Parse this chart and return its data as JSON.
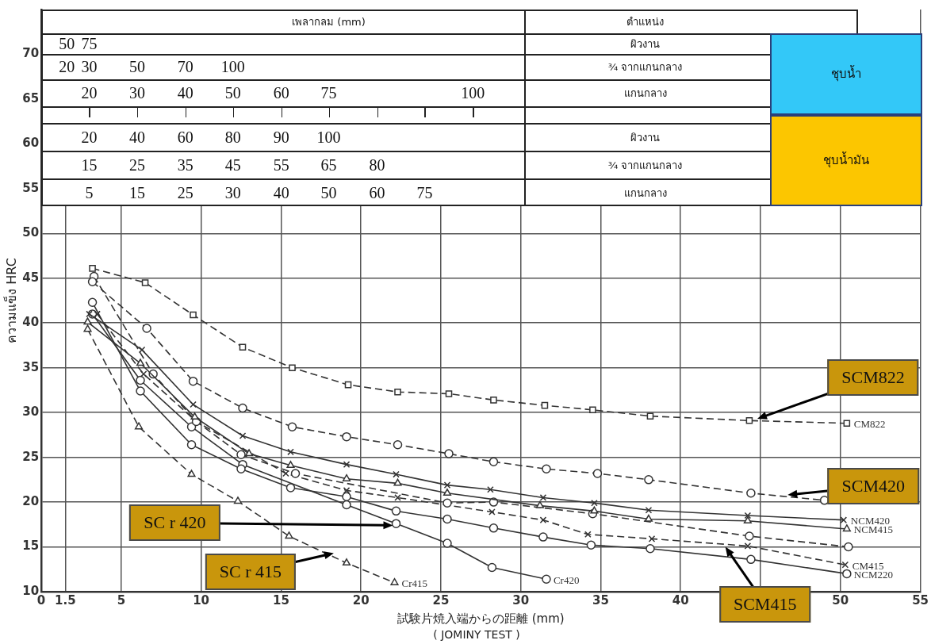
{
  "chart_data": {
    "type": "line",
    "xlabel": "試験片焼入端からの距離 (mm)",
    "ylabel": "ความแข็ง HRC",
    "xlim": [
      0,
      55
    ],
    "ylim": [
      10,
      75
    ],
    "xticks": [
      0,
      1.5,
      5,
      10,
      15,
      20,
      25,
      30,
      35,
      40,
      {
        "value": 45,
        "label": null
      },
      50,
      55
    ],
    "yticks": [
      10,
      15,
      20,
      25,
      30,
      35,
      40,
      45,
      50,
      55,
      60,
      65,
      70
    ],
    "grid": true,
    "series": [
      {
        "name": "CM822",
        "color": "#333333",
        "marker": "square",
        "line_style": "dashed",
        "x": [
          3.2,
          6.5,
          9.5,
          12.6,
          15.7,
          19.2,
          22.3,
          25.5,
          28.3,
          31.5,
          34.5,
          38.1,
          44.3,
          50.4
        ],
        "values": [
          46.1,
          44.5,
          40.9,
          37.3,
          35.0,
          33.1,
          32.3,
          32.1,
          31.4,
          30.8,
          30.3,
          29.6,
          29.1,
          28.8
        ]
      },
      {
        "color": "#333333",
        "marker": "circle",
        "line_style": "dashed",
        "x": [
          3.2,
          6.6,
          9.5,
          12.6,
          15.7,
          19.1,
          22.3,
          25.5,
          28.3,
          31.6,
          34.8,
          38.0,
          44.4,
          49.0
        ],
        "values": [
          44.6,
          39.4,
          33.5,
          30.5,
          28.4,
          27.3,
          26.4,
          25.4,
          24.5,
          23.7,
          23.2,
          22.5,
          21.0,
          20.2
        ]
      },
      {
        "name": "NCM420",
        "color": "#333333",
        "marker": "cross",
        "line_style": "solid",
        "x": [
          3.0,
          6.3,
          9.5,
          12.6,
          15.6,
          19.1,
          22.2,
          25.4,
          28.1,
          31.4,
          34.6,
          38.0,
          44.2,
          50.2
        ],
        "values": [
          41.0,
          37.0,
          30.9,
          27.4,
          25.6,
          24.2,
          23.1,
          21.9,
          21.4,
          20.5,
          19.9,
          19.1,
          18.5,
          18.0
        ]
      },
      {
        "name": "NCM415",
        "color": "#333333",
        "marker": "triangle",
        "line_style": "solid",
        "x": [
          2.9,
          6.2,
          9.6,
          13.0,
          15.6,
          19.1,
          22.3,
          25.4,
          31.2,
          34.6,
          38.0,
          44.2,
          50.4
        ],
        "values": [
          40.1,
          35.5,
          29.5,
          25.4,
          24.1,
          22.6,
          22.1,
          21.0,
          19.6,
          19.0,
          18.1,
          17.9,
          17.0
        ]
      },
      {
        "color": "#333333",
        "marker": "circle",
        "line_style": "dashed",
        "x": [
          3.3,
          7.0,
          9.7,
          12.5,
          15.9,
          25.4,
          28.3,
          34.5,
          44.3,
          50.5
        ],
        "values": [
          45.2,
          34.3,
          29.0,
          25.3,
          23.2,
          19.9,
          20.0,
          18.7,
          16.2,
          15.0
        ]
      },
      {
        "name": "CM415",
        "color": "#333333",
        "marker": "cross",
        "line_style": "dashed",
        "x": [
          3.5,
          6.4,
          9.7,
          15.3,
          19.1,
          22.3,
          28.2,
          31.4,
          34.2,
          38.2,
          44.2,
          50.3
        ],
        "values": [
          41.0,
          34.3,
          29.0,
          23.2,
          21.3,
          20.5,
          18.9,
          18.0,
          16.4,
          15.9,
          15.1,
          13.0
        ]
      },
      {
        "name": "NCM220",
        "color": "#333333",
        "marker": "circle",
        "line_style": "solid",
        "x": [
          3.2,
          6.2,
          9.4,
          12.5,
          15.6,
          19.1,
          22.2,
          25.4,
          28.3,
          31.4,
          34.4,
          38.1,
          44.4,
          50.4
        ],
        "values": [
          42.3,
          32.4,
          26.4,
          23.7,
          21.6,
          20.6,
          19.0,
          18.1,
          17.1,
          16.1,
          15.2,
          14.8,
          13.6,
          12.0
        ]
      },
      {
        "name": "Cr420",
        "color": "#333333",
        "marker": "circle",
        "line_style": "solid",
        "x": [
          3.2,
          6.2,
          9.4,
          12.6,
          15.6,
          19.1,
          22.2,
          25.4,
          28.2,
          31.6
        ],
        "values": [
          41.0,
          33.6,
          28.4,
          24.2,
          null,
          19.7,
          17.6,
          15.4,
          12.7,
          11.4
        ]
      },
      {
        "name": "Cr415",
        "color": "#333333",
        "marker": "triangle",
        "line_style": "dashed",
        "x": [
          2.9,
          6.1,
          9.4,
          12.3,
          15.5,
          19.1,
          22.1
        ],
        "values": [
          39.3,
          28.4,
          23.1,
          20.1,
          16.2,
          13.2,
          11.0
        ]
      }
    ],
    "annotations": [
      "ชุบน้ำ",
      "ชุบน้ำมัน",
      "( JOMINY TEST )",
      "เพลากลม (mm)",
      "ตำแหน่ง",
      "50",
      "75",
      "ผิวงาน",
      "20",
      "30",
      "50",
      "70",
      "100",
      "¾ จากแกนกลาง",
      "20",
      "30",
      "40",
      "50",
      "60",
      "75",
      "100",
      "แกนกลาง",
      "20",
      "40",
      "60",
      "80",
      "90",
      "100",
      "ผิวงาน",
      "15",
      "25",
      "35",
      "45",
      "55",
      "65",
      "80",
      "¾ จากแกนกลาง",
      "5",
      "15",
      "25",
      "30",
      "40",
      "50",
      "60",
      "75",
      "แกนกลาง",
      {
        "text": "SCM822",
        "x": 44.8,
        "y": 29.3
      },
      {
        "text": "SCM420",
        "x": 46.7,
        "y": 20.8
      },
      {
        "text": "SCM415",
        "x": 42.8,
        "y": 15.0
      },
      {
        "text": "SC r 420",
        "x": 22.0,
        "y": 17.4
      },
      {
        "text": "SC r 415",
        "x": 18.3,
        "y": 14.3
      }
    ]
  }
}
